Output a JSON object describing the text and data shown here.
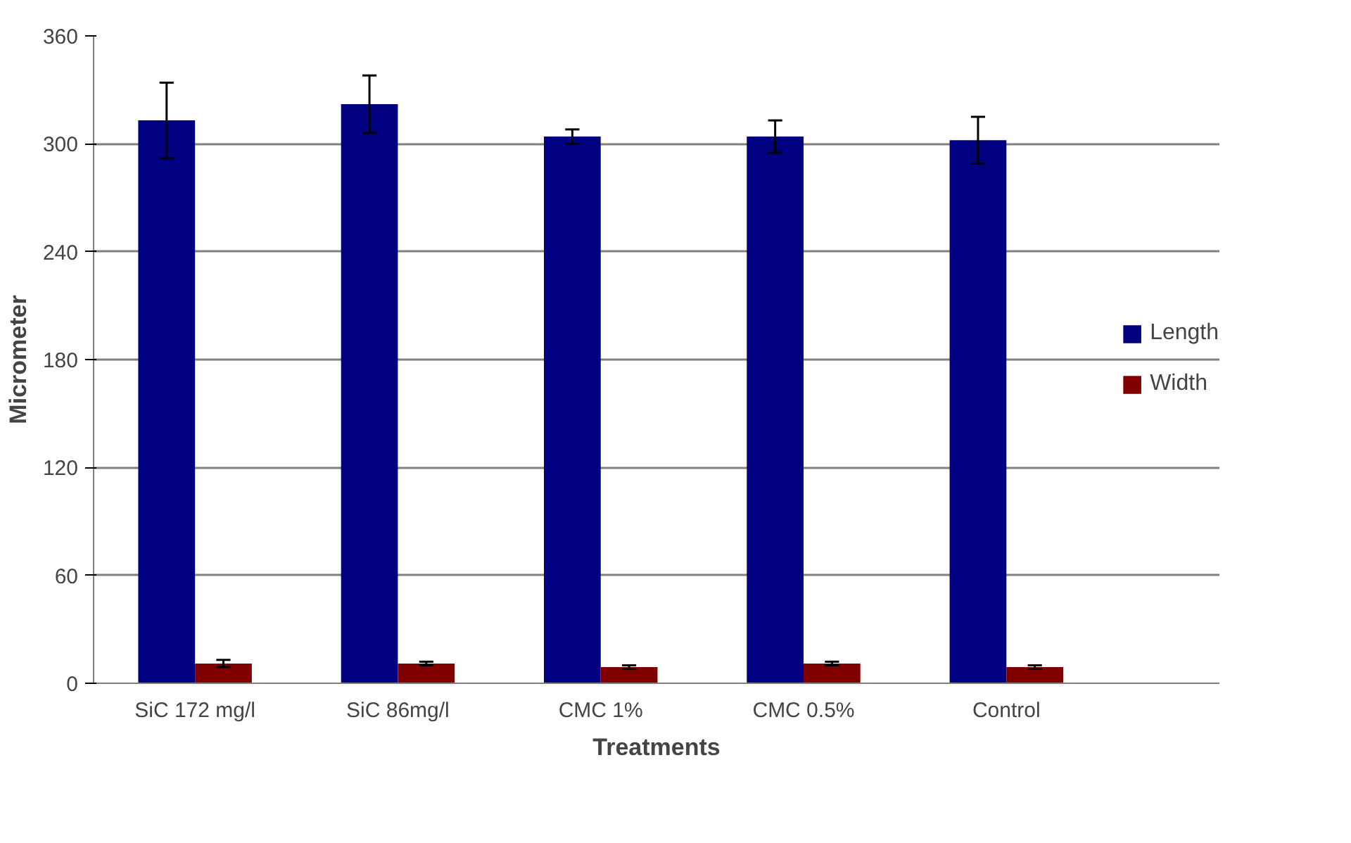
{
  "chart_data": {
    "type": "bar",
    "xlabel": "Treatments",
    "ylabel": "Micrometer",
    "categories": [
      "SiC 172 mg/l",
      "SiC 86mg/l",
      "CMC 1%",
      "CMC 0.5%",
      "Control"
    ],
    "series": [
      {
        "name": "Length",
        "color": "#000080",
        "values": [
          313,
          322,
          304,
          304,
          302
        ],
        "errors": [
          21,
          16,
          4,
          9,
          13
        ]
      },
      {
        "name": "Width",
        "color": "#800000",
        "values": [
          11,
          11,
          9,
          11,
          9
        ],
        "errors": [
          2,
          1,
          1,
          1,
          1
        ]
      }
    ],
    "ylim": [
      0,
      360
    ],
    "yticks": [
      0,
      60,
      120,
      180,
      240,
      300,
      360
    ],
    "grid": "y",
    "legend": "right"
  }
}
